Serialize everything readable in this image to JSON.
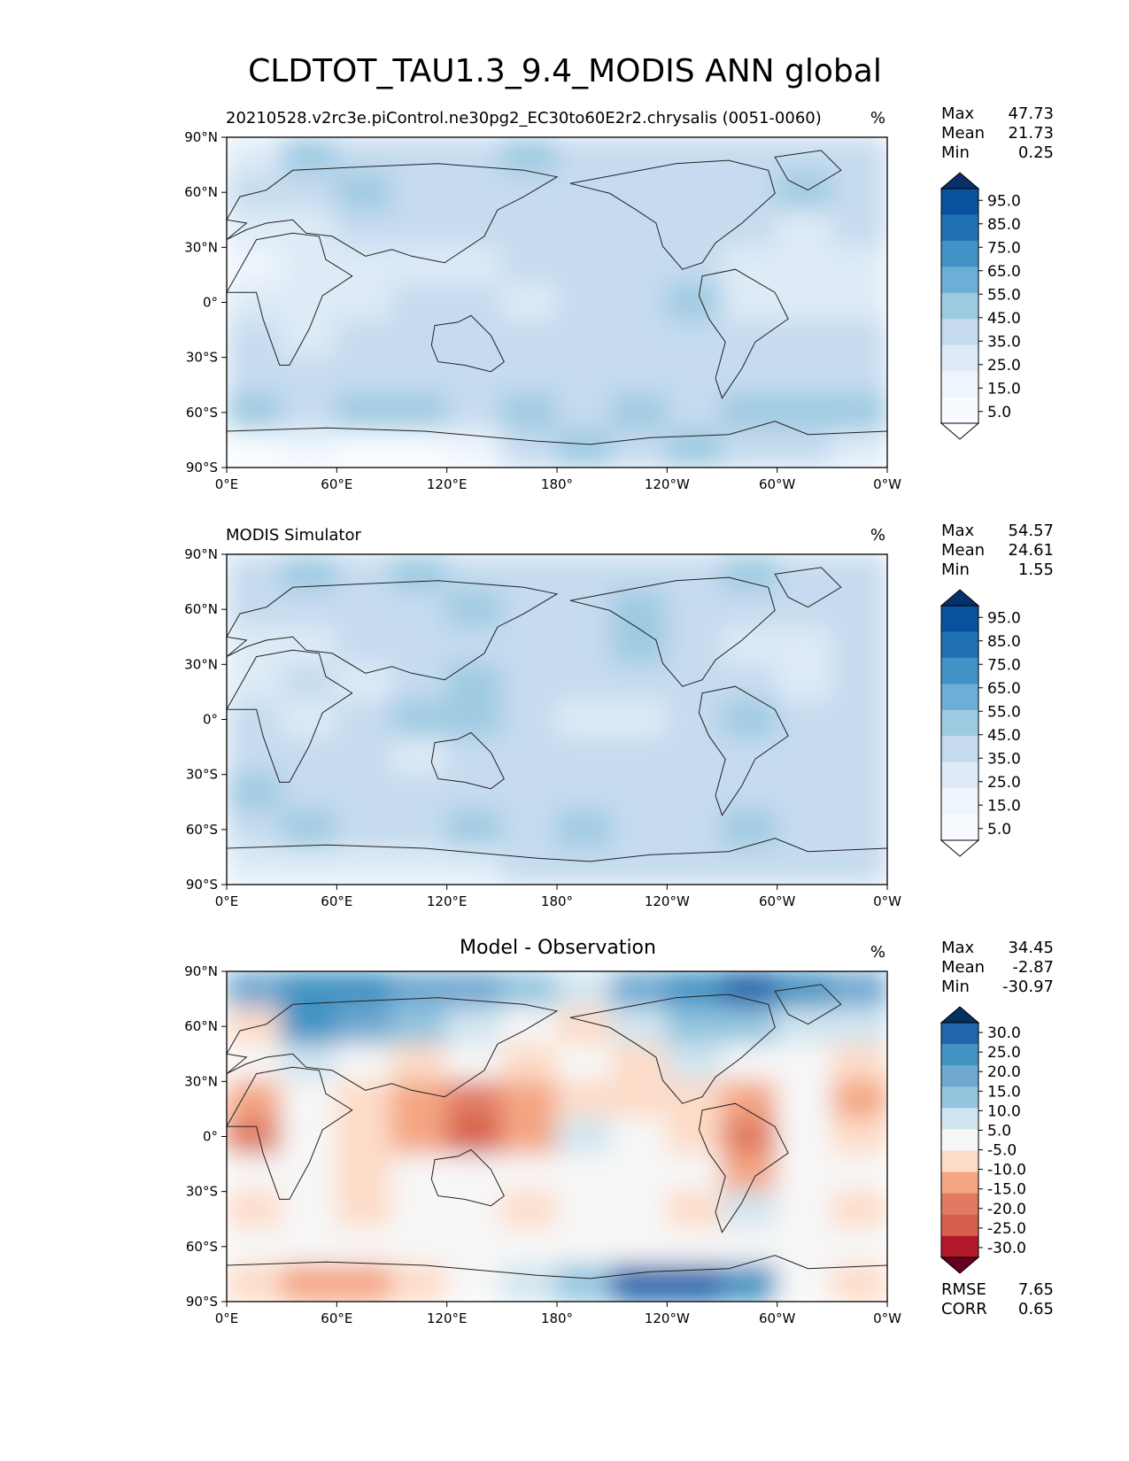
{
  "figure_title": "CLDTOT_TAU1.3_9.4_MODIS ANN global",
  "chart_data": [
    {
      "type": "heatmap",
      "title": "",
      "subtitle_left": "20210528.v2rc3e.piControl.ne30pg2_EC30to60E2r2.chrysalis (0051-0060)",
      "units": "%",
      "stats": {
        "max_label": "Max",
        "max": "47.73",
        "mean_label": "Mean",
        "mean": "21.73",
        "min_label": "Min",
        "min": "0.25"
      },
      "x_ticks": [
        "0°E",
        "60°E",
        "120°E",
        "180°",
        "120°W",
        "60°W",
        "0°W"
      ],
      "y_ticks": [
        "90°N",
        "60°N",
        "30°N",
        "0°",
        "30°S",
        "60°S",
        "90°S"
      ],
      "colorbar": {
        "labels": [
          "95.0",
          "85.0",
          "75.0",
          "65.0",
          "55.0",
          "45.0",
          "35.0",
          "25.0",
          "15.0",
          "5.0"
        ],
        "colors": [
          "#08306b",
          "#08519c",
          "#2171b5",
          "#4292c6",
          "#6baed6",
          "#9ecae1",
          "#c6dbef",
          "#deebf7",
          "#eef5fc",
          "#f7fbff",
          "#ffffff"
        ]
      },
      "field": [
        [
          "#deebf7",
          "#9ecae1",
          "#c6dbef",
          "#c6dbef",
          "#c6dbef",
          "#9ecae1",
          "#c6dbef",
          "#c6dbef",
          "#c6dbef",
          "#c6dbef",
          "#c6dbef",
          "#c6dbef"
        ],
        [
          "#c6dbef",
          "#c6dbef",
          "#9ecae1",
          "#c6dbef",
          "#c6dbef",
          "#c6dbef",
          "#c6dbef",
          "#c6dbef",
          "#c6dbef",
          "#c6dbef",
          "#9ecae1",
          "#c6dbef"
        ],
        [
          "#deebf7",
          "#deebf7",
          "#c6dbef",
          "#c6dbef",
          "#c6dbef",
          "#c6dbef",
          "#c6dbef",
          "#c6dbef",
          "#c6dbef",
          "#c6dbef",
          "#deebf7",
          "#c6dbef"
        ],
        [
          "#eef5fc",
          "#deebf7",
          "#deebf7",
          "#deebf7",
          "#deebf7",
          "#c6dbef",
          "#c6dbef",
          "#c6dbef",
          "#c6dbef",
          "#deebf7",
          "#deebf7",
          "#deebf7"
        ],
        [
          "#deebf7",
          "#deebf7",
          "#deebf7",
          "#c6dbef",
          "#c6dbef",
          "#deebf7",
          "#c6dbef",
          "#c6dbef",
          "#9ecae1",
          "#deebf7",
          "#deebf7",
          "#deebf7"
        ],
        [
          "#c6dbef",
          "#deebf7",
          "#c6dbef",
          "#c6dbef",
          "#c6dbef",
          "#c6dbef",
          "#c6dbef",
          "#c6dbef",
          "#c6dbef",
          "#c6dbef",
          "#c6dbef",
          "#c6dbef"
        ],
        [
          "#c6dbef",
          "#c6dbef",
          "#c6dbef",
          "#c6dbef",
          "#c6dbef",
          "#c6dbef",
          "#c6dbef",
          "#c6dbef",
          "#c6dbef",
          "#c6dbef",
          "#c6dbef",
          "#c6dbef"
        ],
        [
          "#9ecae1",
          "#c6dbef",
          "#9ecae1",
          "#9ecae1",
          "#c6dbef",
          "#9ecae1",
          "#c6dbef",
          "#9ecae1",
          "#c6dbef",
          "#9ecae1",
          "#9ecae1",
          "#9ecae1"
        ],
        [
          "#f7fbff",
          "#eef5fc",
          "#f7fbff",
          "#f7fbff",
          "#eef5fc",
          "#c6dbef",
          "#9ecae1",
          "#c6dbef",
          "#9ecae1",
          "#c6dbef",
          "#c6dbef",
          "#deebf7"
        ]
      ]
    },
    {
      "type": "heatmap",
      "title": "",
      "subtitle_left": "MODIS Simulator",
      "units": "%",
      "stats": {
        "max_label": "Max",
        "max": "54.57",
        "mean_label": "Mean",
        "mean": "24.61",
        "min_label": "Min",
        "min": "1.55"
      },
      "x_ticks": [
        "0°E",
        "60°E",
        "120°E",
        "180°",
        "120°W",
        "60°W",
        "0°W"
      ],
      "y_ticks": [
        "90°N",
        "60°N",
        "30°N",
        "0°",
        "30°S",
        "60°S",
        "90°S"
      ],
      "colorbar": {
        "labels": [
          "95.0",
          "85.0",
          "75.0",
          "65.0",
          "55.0",
          "45.0",
          "35.0",
          "25.0",
          "15.0",
          "5.0"
        ],
        "colors": [
          "#08306b",
          "#08519c",
          "#2171b5",
          "#4292c6",
          "#6baed6",
          "#9ecae1",
          "#c6dbef",
          "#deebf7",
          "#eef5fc",
          "#f7fbff",
          "#ffffff"
        ]
      },
      "field": [
        [
          "#c6dbef",
          "#9ecae1",
          "#c6dbef",
          "#9ecae1",
          "#c6dbef",
          "#c6dbef",
          "#c6dbef",
          "#c6dbef",
          "#c6dbef",
          "#9ecae1",
          "#c6dbef",
          "#c6dbef"
        ],
        [
          "#c6dbef",
          "#c6dbef",
          "#c6dbef",
          "#c6dbef",
          "#9ecae1",
          "#c6dbef",
          "#c6dbef",
          "#9ecae1",
          "#c6dbef",
          "#c6dbef",
          "#c6dbef",
          "#c6dbef"
        ],
        [
          "#deebf7",
          "#deebf7",
          "#c6dbef",
          "#c6dbef",
          "#c6dbef",
          "#c6dbef",
          "#c6dbef",
          "#9ecae1",
          "#c6dbef",
          "#deebf7",
          "#deebf7",
          "#c6dbef"
        ],
        [
          "#deebf7",
          "#c6dbef",
          "#deebf7",
          "#c6dbef",
          "#9ecae1",
          "#c6dbef",
          "#c6dbef",
          "#c6dbef",
          "#c6dbef",
          "#c6dbef",
          "#deebf7",
          "#c6dbef"
        ],
        [
          "#c6dbef",
          "#deebf7",
          "#c6dbef",
          "#9ecae1",
          "#9ecae1",
          "#c6dbef",
          "#deebf7",
          "#deebf7",
          "#c6dbef",
          "#9ecae1",
          "#c6dbef",
          "#c6dbef"
        ],
        [
          "#c6dbef",
          "#c6dbef",
          "#c6dbef",
          "#deebf7",
          "#c6dbef",
          "#c6dbef",
          "#c6dbef",
          "#c6dbef",
          "#c6dbef",
          "#c6dbef",
          "#c6dbef",
          "#c6dbef"
        ],
        [
          "#9ecae1",
          "#c6dbef",
          "#c6dbef",
          "#c6dbef",
          "#c6dbef",
          "#c6dbef",
          "#c6dbef",
          "#c6dbef",
          "#c6dbef",
          "#c6dbef",
          "#c6dbef",
          "#c6dbef"
        ],
        [
          "#c6dbef",
          "#9ecae1",
          "#c6dbef",
          "#c6dbef",
          "#9ecae1",
          "#c6dbef",
          "#9ecae1",
          "#c6dbef",
          "#c6dbef",
          "#9ecae1",
          "#c6dbef",
          "#c6dbef"
        ],
        [
          "#deebf7",
          "#deebf7",
          "#deebf7",
          "#deebf7",
          "#deebf7",
          "#c6dbef",
          "#c6dbef",
          "#c6dbef",
          "#c6dbef",
          "#c6dbef",
          "#c6dbef",
          "#c6dbef"
        ]
      ]
    },
    {
      "type": "heatmap",
      "title": "Model - Observation",
      "subtitle_left": "",
      "units": "%",
      "stats": {
        "max_label": "Max",
        "max": "34.45",
        "mean_label": "Mean",
        "mean": "-2.87",
        "min_label": "Min",
        "min": "-30.97"
      },
      "metrics": {
        "rmse_label": "RMSE",
        "rmse": "7.65",
        "corr_label": "CORR",
        "corr": "0.65"
      },
      "x_ticks": [
        "0°E",
        "60°E",
        "120°E",
        "180°",
        "120°W",
        "60°W",
        "0°W"
      ],
      "y_ticks": [
        "90°N",
        "60°N",
        "30°N",
        "0°",
        "30°S",
        "60°S",
        "90°S"
      ],
      "colorbar": {
        "labels": [
          "30.0",
          "25.0",
          "20.0",
          "15.0",
          "10.0",
          "5.0",
          "-5.0",
          "-10.0",
          "-15.0",
          "-20.0",
          "-25.0",
          "-30.0"
        ],
        "colors": [
          "#053061",
          "#2166ac",
          "#4393c3",
          "#6fa8d0",
          "#92c5de",
          "#d1e5f0",
          "#f7f7f7",
          "#fddbc7",
          "#f4a582",
          "#e07b62",
          "#d6604d",
          "#b2182b",
          "#67001f"
        ]
      },
      "field": [
        [
          "#6fa8d0",
          "#4393c3",
          "#4393c3",
          "#6fa8d0",
          "#6fa8d0",
          "#92c5de",
          "#d1e5f0",
          "#6fa8d0",
          "#4393c3",
          "#2166ac",
          "#4393c3",
          "#6fa8d0"
        ],
        [
          "#fddbc7",
          "#4393c3",
          "#6fa8d0",
          "#92c5de",
          "#d1e5f0",
          "#f7f7f7",
          "#fddbc7",
          "#d1e5f0",
          "#92c5de",
          "#92c5de",
          "#d1e5f0",
          "#d1e5f0"
        ],
        [
          "#f7f7f7",
          "#d1e5f0",
          "#f7f7f7",
          "#fddbc7",
          "#f7f7f7",
          "#fddbc7",
          "#f7f7f7",
          "#fddbc7",
          "#d1e5f0",
          "#f7f7f7",
          "#f7f7f7",
          "#fddbc7"
        ],
        [
          "#f4a582",
          "#f7f7f7",
          "#fddbc7",
          "#f4a582",
          "#e07b62",
          "#f4a582",
          "#fddbc7",
          "#fddbc7",
          "#fddbc7",
          "#f4a582",
          "#f7f7f7",
          "#f4a582"
        ],
        [
          "#e07b62",
          "#f7f7f7",
          "#fddbc7",
          "#f4a582",
          "#d6604d",
          "#f4a582",
          "#d1e5f0",
          "#f7f7f7",
          "#fddbc7",
          "#e07b62",
          "#f7f7f7",
          "#fddbc7"
        ],
        [
          "#f7f7f7",
          "#f7f7f7",
          "#fddbc7",
          "#f7f7f7",
          "#f7f7f7",
          "#f7f7f7",
          "#f7f7f7",
          "#f7f7f7",
          "#f7f7f7",
          "#f4a582",
          "#f7f7f7",
          "#f7f7f7"
        ],
        [
          "#fddbc7",
          "#f7f7f7",
          "#fddbc7",
          "#f7f7f7",
          "#f7f7f7",
          "#fddbc7",
          "#f7f7f7",
          "#f7f7f7",
          "#fddbc7",
          "#d1e5f0",
          "#f7f7f7",
          "#fddbc7"
        ],
        [
          "#f7f7f7",
          "#f7f7f7",
          "#f7f7f7",
          "#f7f7f7",
          "#f7f7f7",
          "#f7f7f7",
          "#f7f7f7",
          "#f7f7f7",
          "#f7f7f7",
          "#f7f7f7",
          "#f7f7f7",
          "#f7f7f7"
        ],
        [
          "#fddbc7",
          "#f4a582",
          "#f4a582",
          "#fddbc7",
          "#f7f7f7",
          "#d1e5f0",
          "#92c5de",
          "#2166ac",
          "#2166ac",
          "#4393c3",
          "#f7f7f7",
          "#fddbc7"
        ]
      ]
    }
  ]
}
